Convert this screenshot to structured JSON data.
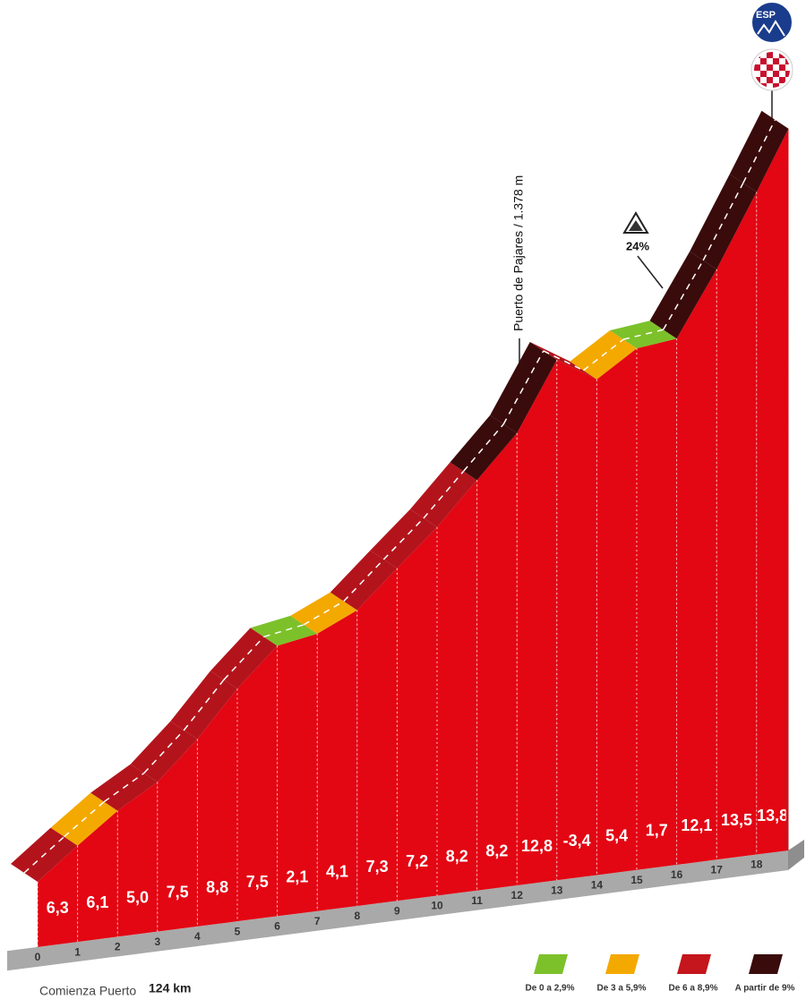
{
  "chart_data": {
    "type": "climb-profile",
    "pass_label": "Puerto de Pajares / 1.378 m",
    "max_gradient_label": "24%",
    "country": "ESP",
    "start_label": "Comienza Puerto",
    "start_km": "124 km",
    "xlim": [
      0,
      18.8
    ],
    "xticks": [
      0,
      1,
      2,
      3,
      4,
      5,
      6,
      7,
      8,
      9,
      10,
      11,
      12,
      13,
      14,
      15,
      16,
      17,
      18
    ],
    "values": [
      6.3,
      6.1,
      5.0,
      7.5,
      8.8,
      7.5,
      2.1,
      4.1,
      7.3,
      7.2,
      8.2,
      8.2,
      12.8,
      -3.4,
      5.4,
      1.7,
      12.1,
      13.5,
      13.8
    ],
    "value_labels": [
      "6,3",
      "6,1",
      "5,0",
      "7,5",
      "8,8",
      "7,5",
      "2,1",
      "4,1",
      "7,3",
      "7,2",
      "8,2",
      "8,2",
      "12,8",
      "-3,4",
      "5,4",
      "1,7",
      "12,1",
      "13,5",
      "13,8"
    ],
    "segment_colors": [
      "#b3141c",
      "#f4a900",
      "#b3141c",
      "#b3141c",
      "#b3141c",
      "#b3141c",
      "#7cc12a",
      "#f4a900",
      "#b3141c",
      "#b3141c",
      "#b3141c",
      "#3a0b0b",
      "#3a0b0b",
      "#b3141c",
      "#f4a900",
      "#7cc12a",
      "#3a0b0b",
      "#3a0b0b",
      "#3a0b0b"
    ],
    "legend": [
      {
        "label": "De 0 a 2,9%",
        "color": "#7cc12a"
      },
      {
        "label": "De 3 a 5,9%",
        "color": "#f4a900"
      },
      {
        "label": "De 6 a 8,9%",
        "color": "#c4161c"
      },
      {
        "label": "A partir de 9%",
        "color": "#3a0b0b"
      }
    ]
  }
}
